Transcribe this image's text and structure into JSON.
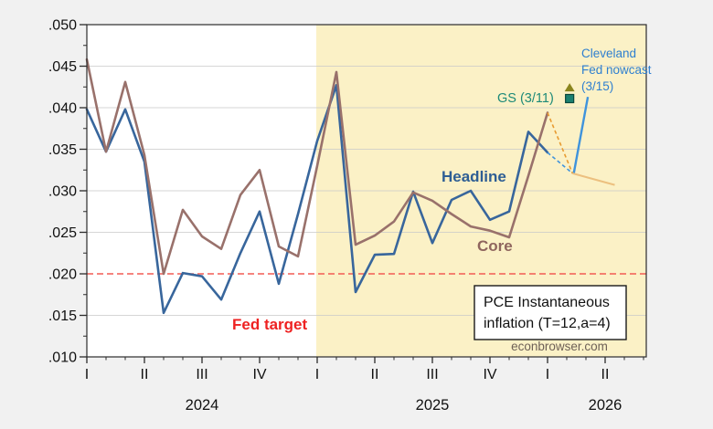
{
  "labels": {
    "headline": "Headline",
    "core": "Core",
    "fed_target": "Fed target",
    "gs": "GS (3/11)",
    "cleveland_1": "Cleveland",
    "cleveland_2": "Fed nowcast",
    "cleveland_3": "(3/15)",
    "box_line1": "PCE Instantaneous",
    "box_line2": "inflation (T=12,a=4)",
    "watermark": "econbrowser.com"
  },
  "colors": {
    "headline": "#38669C",
    "core": "#99716B",
    "fed_target_line": "#F25B54",
    "forecast_shade": "#FBF1C6",
    "grid": "#C9C9C9",
    "plot_bg": "#FFFFFF",
    "outer_bg": "#F1F1F1",
    "pointer_blue": "#3F93DC",
    "dashed_orange": "#E89B30",
    "tan_segment": "#ECC07F",
    "gs_triangle": "#8A851E",
    "gs_square": "#1B8070",
    "axis": "#2B2B2B"
  },
  "chart_data": {
    "type": "line",
    "title": "PCE Instantaneous inflation (T=12,a=4)",
    "x_axis": {
      "frequency": "monthly",
      "start": "2024-01",
      "quarter_ticks": [
        {
          "label": "I",
          "index": 0
        },
        {
          "label": "II",
          "index": 3
        },
        {
          "label": "III",
          "index": 6
        },
        {
          "label": "IV",
          "index": 9
        },
        {
          "label": "I",
          "index": 12
        },
        {
          "label": "II",
          "index": 15
        },
        {
          "label": "III",
          "index": 18
        },
        {
          "label": "IV",
          "index": 21
        },
        {
          "label": "I",
          "index": 24
        },
        {
          "label": "II",
          "index": 27
        }
      ],
      "year_labels": [
        {
          "label": "2024",
          "index": 6
        },
        {
          "label": "2025",
          "index": 18
        },
        {
          "label": "2026",
          "index": 27
        }
      ]
    },
    "y_axis": {
      "min": 0.01,
      "max": 0.05,
      "tick_step": 0.005,
      "tick_labels": [
        ".010",
        ".015",
        ".020",
        ".025",
        ".030",
        ".035",
        ".040",
        ".045",
        ".050"
      ],
      "grid": true
    },
    "fed_target_value": 0.02,
    "forecast_shade_start_index": 12,
    "series": [
      {
        "name": "Headline",
        "values": [
          0.0398,
          0.0347,
          0.0398,
          0.0335,
          0.0153,
          0.0201,
          0.0197,
          0.0169,
          0.0225,
          0.0275,
          0.0188,
          0.0272,
          0.036,
          0.0427,
          0.0178,
          0.0223,
          0.0224,
          0.0299,
          0.0237,
          0.0289,
          0.03,
          0.0265,
          0.0275,
          0.0371,
          0.0346
        ]
      },
      {
        "name": "Core",
        "values": [
          0.0458,
          0.0347,
          0.0431,
          0.0343,
          0.02,
          0.0277,
          0.0245,
          0.023,
          0.0295,
          0.0325,
          0.0233,
          0.0221,
          0.033,
          0.0443,
          0.0235,
          0.0246,
          0.0263,
          0.0298,
          0.0288,
          0.0272,
          0.0257,
          0.0252,
          0.0244,
          0.0318,
          0.0394
        ]
      }
    ],
    "nowcast": {
      "junction": {
        "x_index": 25.3,
        "value": 0.0321
      },
      "tan_segment_end": {
        "x_index": 27.5,
        "value": 0.0307
      },
      "cleveland_pointer_top": {
        "x_index": 26.1,
        "value": 0.0413
      },
      "gs_triangle": {
        "x_index": 25.15,
        "value": 0.0424
      },
      "gs_square": {
        "x_index": 25.15,
        "value": 0.0411
      }
    }
  }
}
